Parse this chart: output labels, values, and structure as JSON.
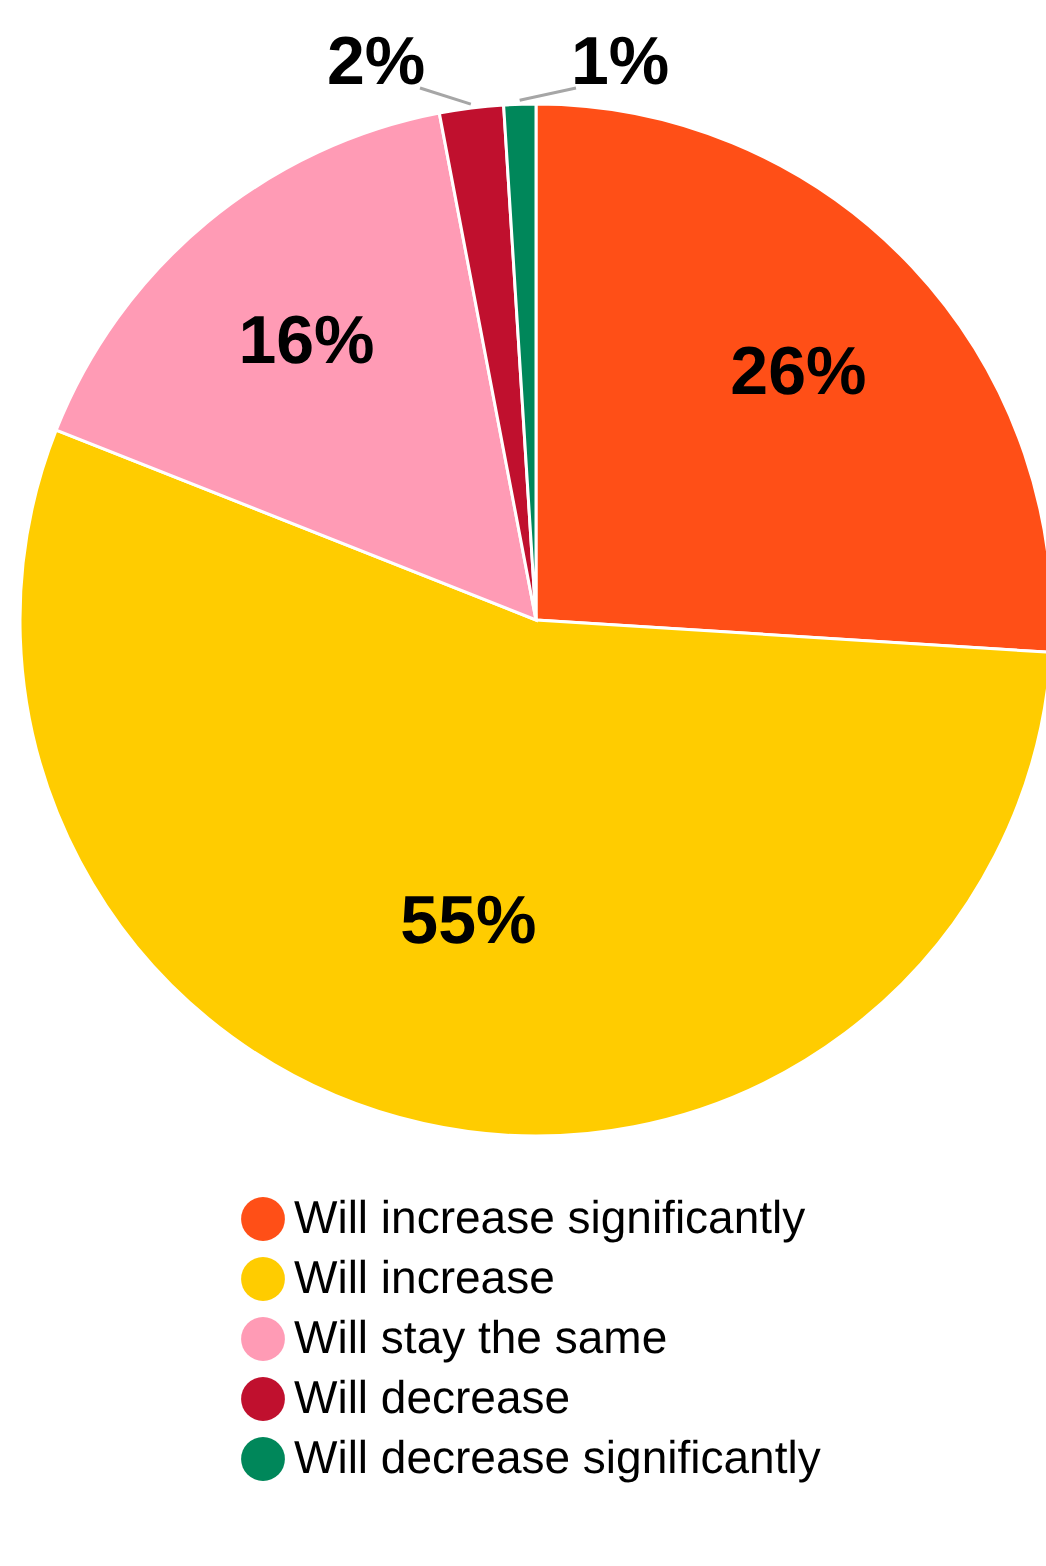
{
  "chart_data": {
    "type": "pie",
    "categories": [
      "Will increase significantly",
      "Will increase",
      "Will stay the same",
      "Will decrease",
      "Will decrease significantly"
    ],
    "values": [
      26,
      55,
      16,
      2,
      1
    ],
    "colors": [
      "#ff4f17",
      "#ffcc00",
      "#ff9bb5",
      "#c0102e",
      "#00875a"
    ],
    "value_labels": [
      "26%",
      "55%",
      "16%",
      "2%",
      "1%"
    ],
    "legend": "bottom"
  }
}
